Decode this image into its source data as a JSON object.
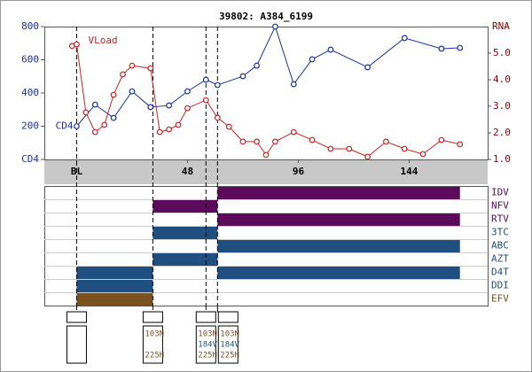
{
  "chart_data": {
    "type": "line",
    "title": "39802: A384_6199",
    "y2_label": "RNA",
    "xlim": [
      -14,
      178
    ],
    "xticks": [
      {
        "value": 0,
        "label": "BL"
      },
      48,
      96,
      144
    ],
    "ylim": [
      0,
      800
    ],
    "yticks": [
      {
        "value": 0,
        "label": "CD4"
      },
      200,
      400,
      600,
      800
    ],
    "y2lim": [
      1,
      6
    ],
    "y2ticks": [
      {
        "value": 1,
        "label": "1.0"
      },
      {
        "value": 2,
        "label": "2.0"
      },
      {
        "value": 3,
        "label": "3.0"
      },
      {
        "value": 4,
        "label": "4.0"
      },
      {
        "value": 5,
        "label": "5.0"
      }
    ],
    "grid": false,
    "series": [
      {
        "name": "CD4",
        "color": "#1a2fa0",
        "x": [
          0,
          8,
          16,
          24,
          32,
          40,
          48,
          56,
          61,
          72,
          78,
          86,
          94,
          102,
          110,
          126,
          142,
          158,
          166
        ],
        "values": [
          200,
          330,
          250,
          410,
          315,
          325,
          410,
          480,
          448,
          501,
          565,
          800,
          453,
          603,
          661,
          555,
          731,
          667,
          672
        ]
      },
      {
        "name": "VLoad",
        "color": "#cc2020",
        "axis": "y2",
        "x": [
          -2,
          0,
          4,
          8,
          12,
          16,
          20,
          24,
          32,
          36,
          40,
          44,
          48,
          56,
          61,
          66,
          72,
          78,
          82,
          86,
          94,
          102,
          110,
          118,
          126,
          134,
          142,
          150,
          158,
          166
        ],
        "values": [
          5.27,
          5.33,
          2.77,
          2.03,
          2.3,
          3.43,
          4.2,
          4.53,
          4.43,
          2.03,
          2.13,
          2.3,
          2.93,
          3.23,
          2.57,
          2.23,
          1.67,
          1.67,
          1.17,
          1.67,
          2.03,
          1.73,
          1.4,
          1.4,
          1.1,
          1.67,
          1.4,
          1.2,
          1.73,
          1.57
        ]
      }
    ],
    "events": [
      0,
      33,
      56,
      61
    ],
    "drugs": [
      {
        "name": "IDV",
        "color": "#5c0a5c",
        "periods": [
          [
            61,
            166
          ]
        ]
      },
      {
        "name": "NFV",
        "color": "#5c0a5c",
        "periods": [
          [
            33,
            61
          ]
        ]
      },
      {
        "name": "RTV",
        "color": "#5c0a5c",
        "periods": [
          [
            61,
            166
          ]
        ]
      },
      {
        "name": "3TC",
        "color": "#1f4e80",
        "periods": [
          [
            33,
            61
          ]
        ]
      },
      {
        "name": "ABC",
        "color": "#1f4e80",
        "periods": [
          [
            61,
            166
          ]
        ]
      },
      {
        "name": "AZT",
        "color": "#1f4e80",
        "periods": [
          [
            33,
            61
          ]
        ]
      },
      {
        "name": "D4T",
        "color": "#1f4e80",
        "periods": [
          [
            0,
            33
          ],
          [
            61,
            166
          ]
        ]
      },
      {
        "name": "DDI",
        "color": "#1f4e80",
        "periods": [
          [
            0,
            33
          ]
        ]
      },
      {
        "name": "EFV",
        "color": "#7a5220",
        "periods": [
          [
            0,
            33
          ]
        ]
      }
    ],
    "genotype_slot_colors": [
      "#7a5220",
      "#1f4e80",
      "#7a5220"
    ],
    "genotypes": [
      {
        "x": 0,
        "mutations": [
          null,
          null,
          null
        ]
      },
      {
        "x": 33,
        "mutations": [
          "103N",
          null,
          "225H"
        ]
      },
      {
        "x": 56,
        "mutations": [
          "103N",
          "184V",
          "225H"
        ]
      },
      {
        "x": 61,
        "mutations": [
          "103N",
          "184V",
          "225H"
        ]
      }
    ]
  }
}
